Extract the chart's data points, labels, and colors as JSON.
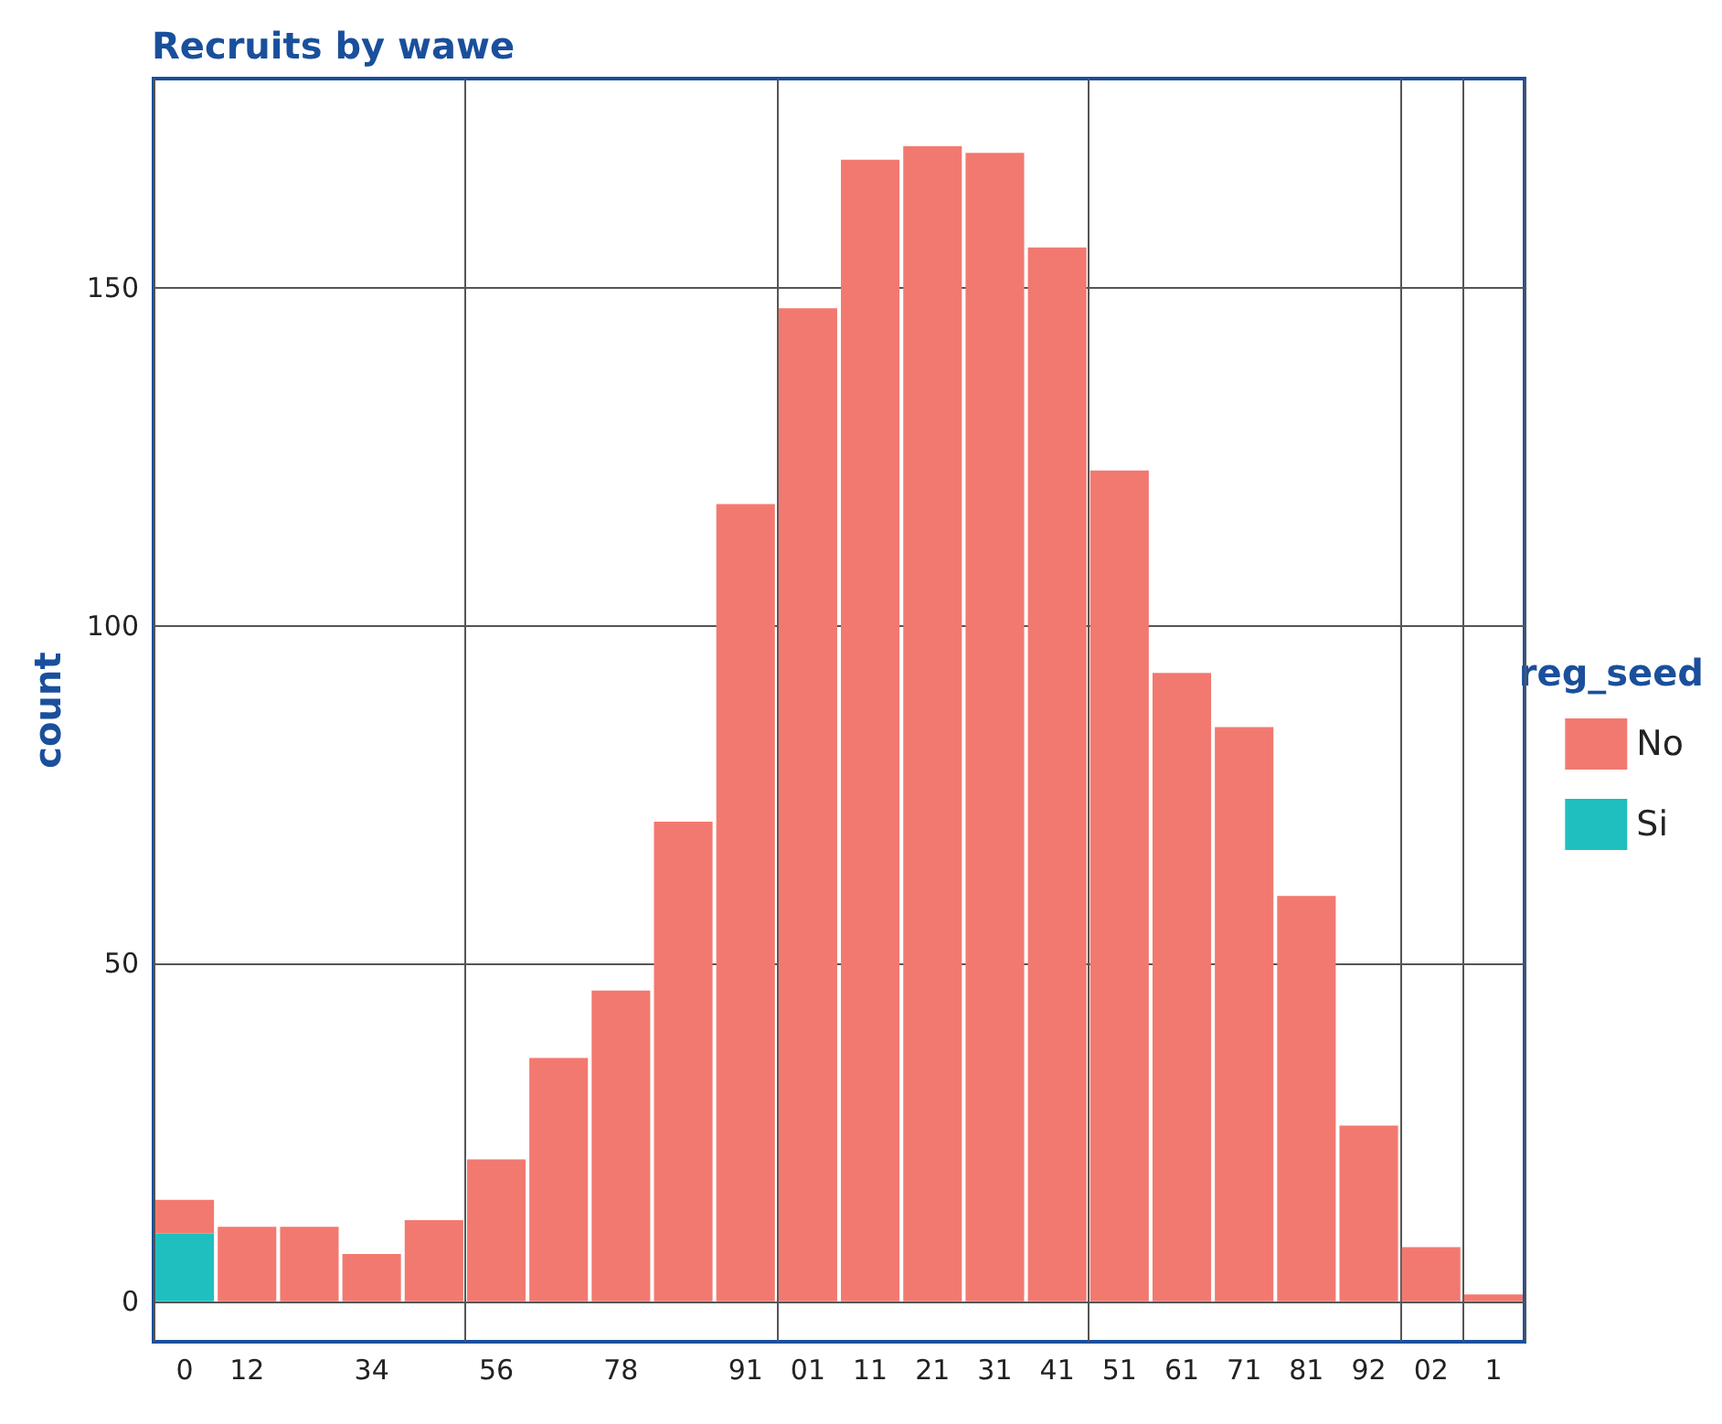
{
  "chart_data": {
    "type": "bar",
    "title": "Recruits by wawe",
    "ylabel": "count",
    "legend_title": "reg_seed",
    "categories": [
      "0",
      "12",
      null,
      "34",
      null,
      "56",
      null,
      "78",
      null,
      "91",
      "01",
      "11",
      "21",
      "31",
      "41",
      "51",
      "61",
      "71",
      "81",
      "92",
      "02",
      "1"
    ],
    "stacked": true,
    "series": [
      {
        "name": "Si",
        "color": "#1fbfc0",
        "values": [
          10,
          0,
          0,
          0,
          0,
          0,
          0,
          0,
          0,
          0,
          0,
          0,
          0,
          0,
          0,
          0,
          0,
          0,
          0,
          0,
          0,
          0
        ]
      },
      {
        "name": "No",
        "color": "#f27970",
        "values": [
          5,
          11,
          11,
          7,
          12,
          21,
          36,
          46,
          71,
          118,
          147,
          169,
          171,
          170,
          156,
          123,
          93,
          85,
          60,
          26,
          8,
          1
        ]
      }
    ],
    "ylim": [
      -6,
      181
    ],
    "yticks": [
      0,
      50,
      100,
      150
    ],
    "grid": true,
    "legend": "right"
  }
}
